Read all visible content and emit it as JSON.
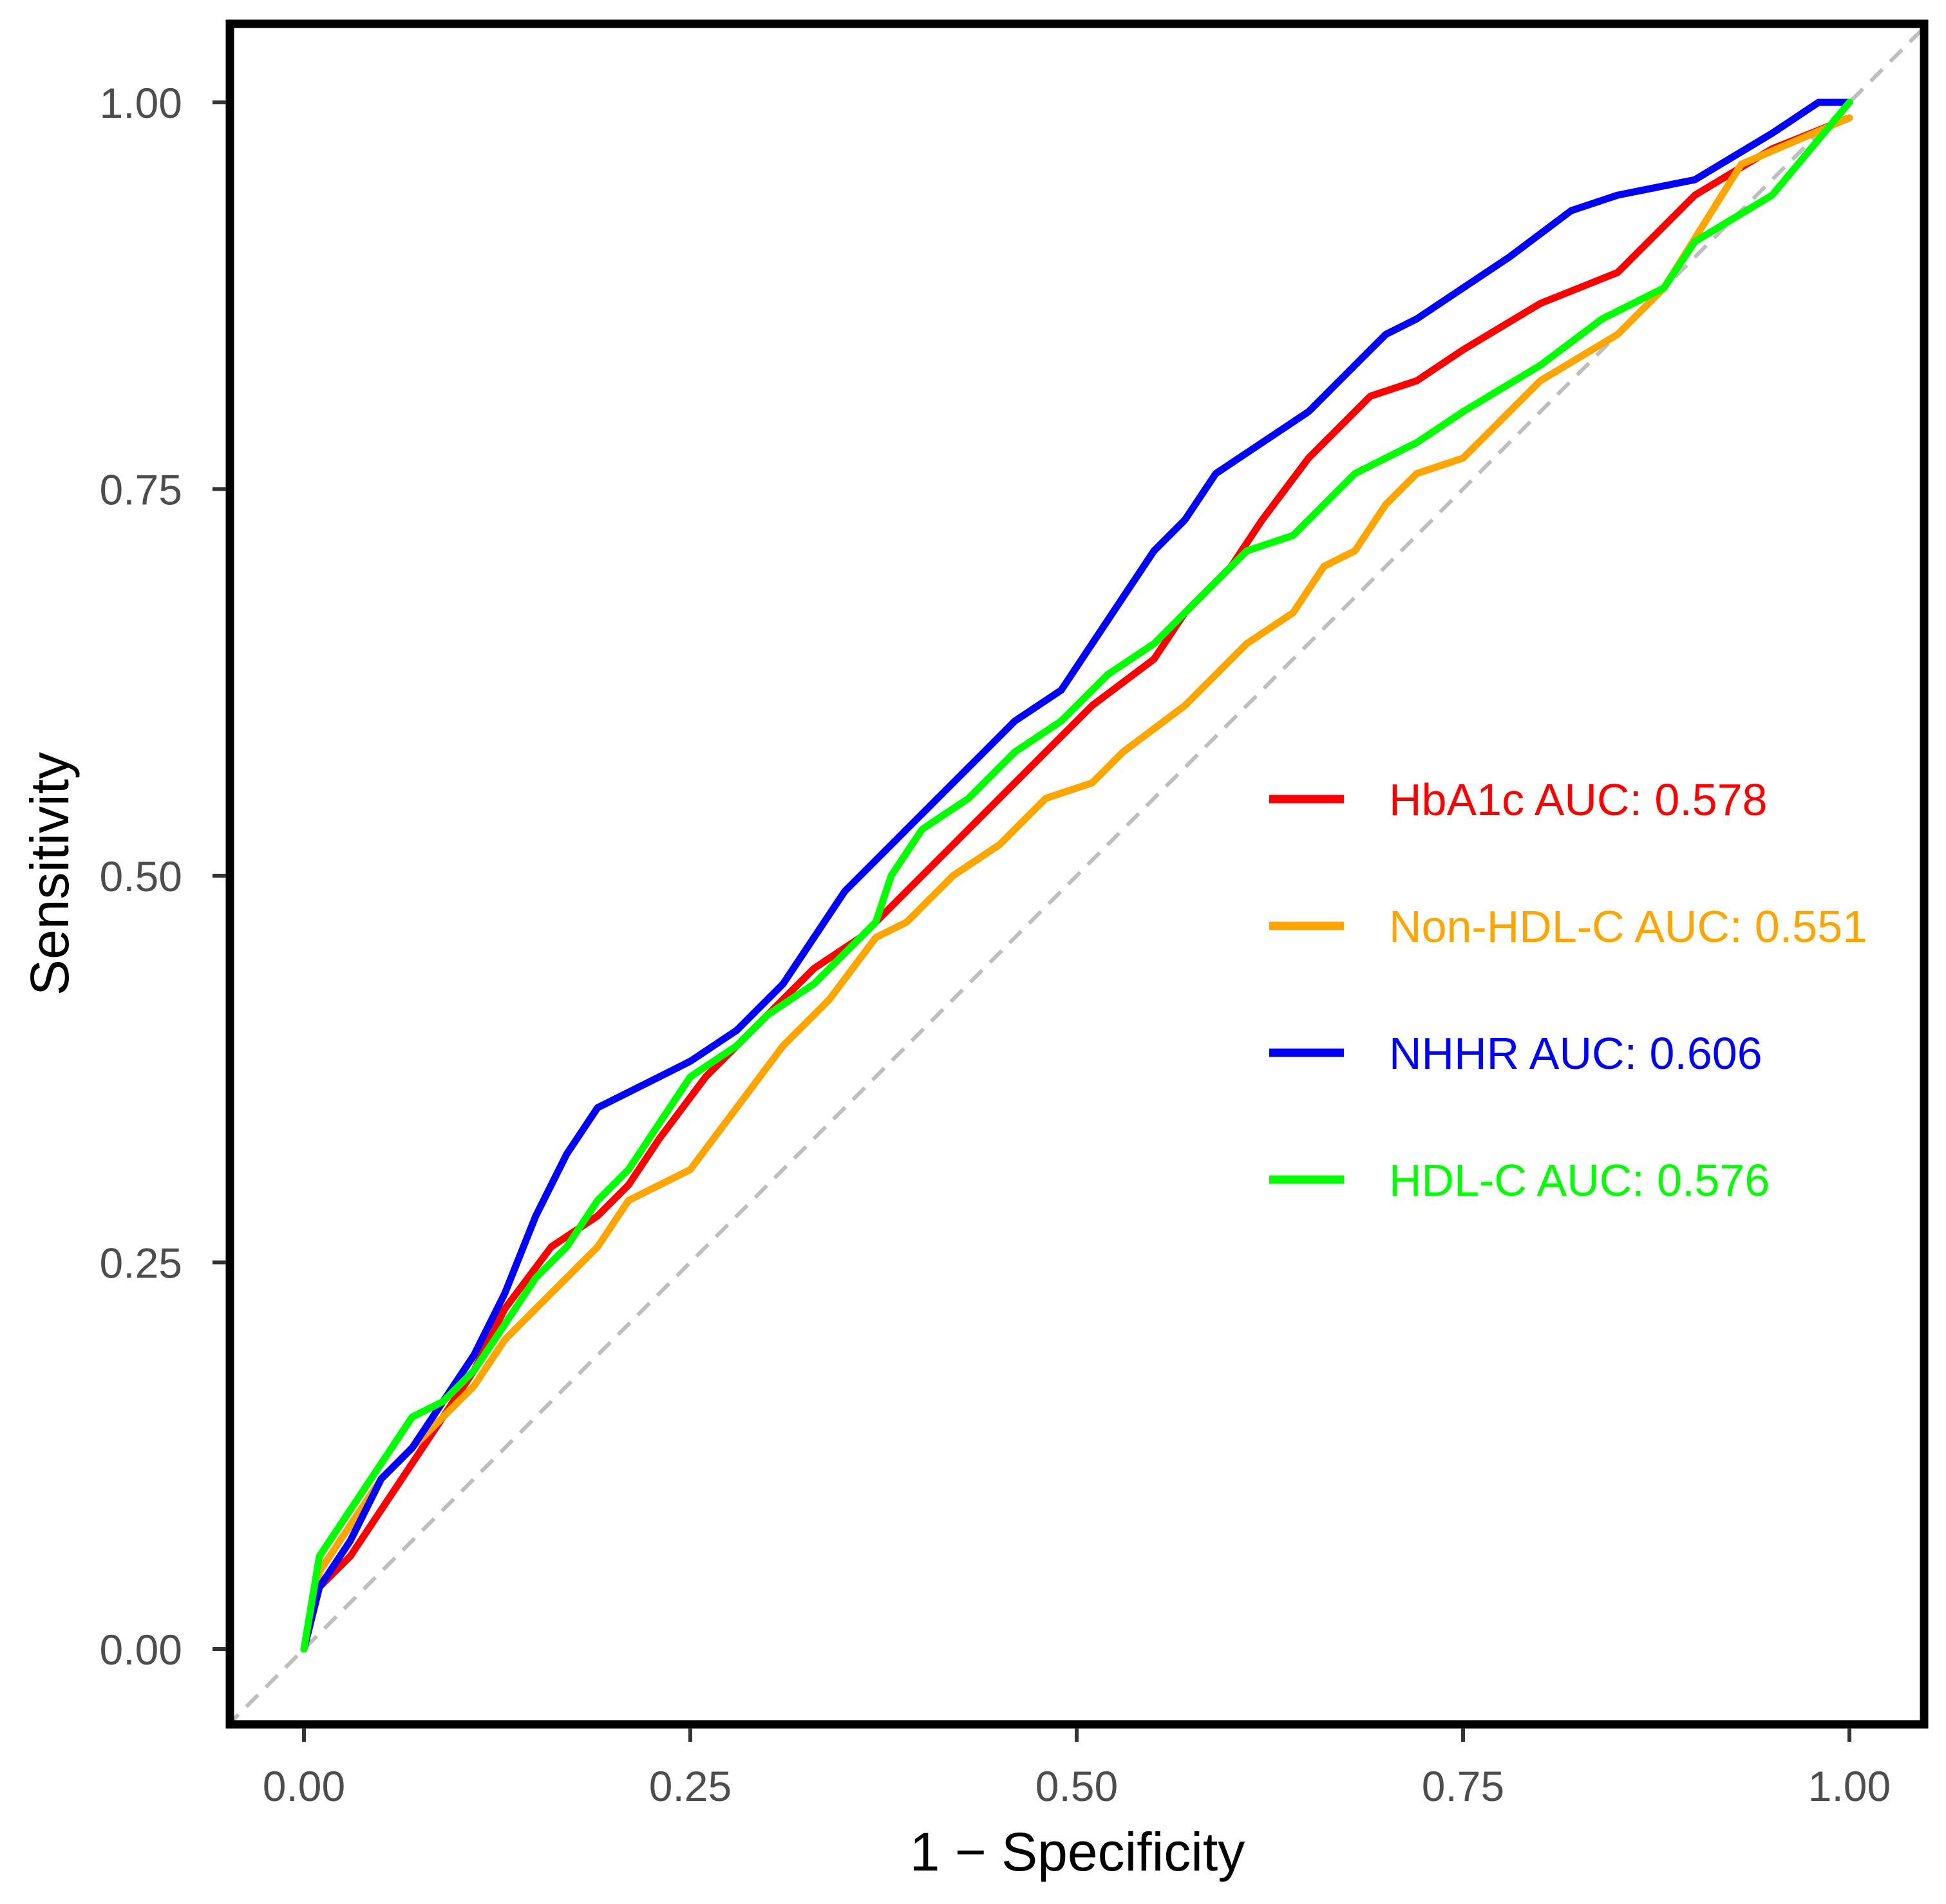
{
  "chart_data": {
    "type": "line",
    "title": "",
    "xlabel": "1 − Specificity",
    "ylabel": "Sensitivity",
    "xlim": [
      -0.05,
      1.05
    ],
    "ylim": [
      -0.05,
      1.05
    ],
    "x_ticks": [
      0,
      0.25,
      0.5,
      0.75,
      1
    ],
    "x_tick_labels": [
      "0.00",
      "0.25",
      "0.50",
      "0.75",
      "1.00"
    ],
    "y_ticks": [
      0,
      0.25,
      0.5,
      0.75,
      1
    ],
    "y_tick_labels": [
      "0.00",
      "0.25",
      "0.50",
      "0.75",
      "1.00"
    ],
    "grid": false,
    "legend_position": "right",
    "reference_line": {
      "style": "dashed",
      "color": "#bebebe",
      "x": [
        -0.05,
        1.05
      ],
      "y": [
        -0.05,
        1.05
      ]
    },
    "series": [
      {
        "name": "HbA1c",
        "legend_label": "HbA1c AUC: 0.578",
        "auc": 0.578,
        "color": "#ff0000",
        "x": [
          0,
          0.01,
          0.03,
          0.05,
          0.07,
          0.09,
          0.11,
          0.13,
          0.16,
          0.19,
          0.21,
          0.23,
          0.26,
          0.29,
          0.31,
          0.33,
          0.36,
          0.39,
          0.42,
          0.45,
          0.48,
          0.51,
          0.55,
          0.57,
          0.6,
          0.62,
          0.65,
          0.69,
          0.72,
          0.75,
          0.8,
          0.85,
          0.87,
          0.9,
          0.95,
          1
        ],
        "y": [
          0,
          0.04,
          0.06,
          0.09,
          0.12,
          0.15,
          0.18,
          0.22,
          0.26,
          0.28,
          0.3,
          0.33,
          0.37,
          0.4,
          0.42,
          0.44,
          0.46,
          0.49,
          0.52,
          0.55,
          0.58,
          0.61,
          0.64,
          0.67,
          0.7,
          0.73,
          0.77,
          0.81,
          0.82,
          0.84,
          0.87,
          0.89,
          0.91,
          0.94,
          0.97,
          0.99
        ]
      },
      {
        "name": "Non-HDL-C",
        "legend_label": "Non-HDL-C AUC: 0.551",
        "auc": 0.551,
        "color": "#ffa500",
        "x": [
          0,
          0.01,
          0.03,
          0.05,
          0.07,
          0.09,
          0.11,
          0.13,
          0.16,
          0.19,
          0.21,
          0.23,
          0.25,
          0.28,
          0.31,
          0.34,
          0.37,
          0.39,
          0.42,
          0.45,
          0.48,
          0.51,
          0.53,
          0.57,
          0.59,
          0.61,
          0.64,
          0.66,
          0.68,
          0.7,
          0.72,
          0.75,
          0.78,
          0.8,
          0.85,
          0.88,
          0.93,
          1
        ],
        "y": [
          0,
          0.05,
          0.08,
          0.11,
          0.13,
          0.15,
          0.17,
          0.2,
          0.23,
          0.26,
          0.29,
          0.3,
          0.31,
          0.35,
          0.39,
          0.42,
          0.46,
          0.47,
          0.5,
          0.52,
          0.55,
          0.56,
          0.58,
          0.61,
          0.63,
          0.65,
          0.67,
          0.7,
          0.71,
          0.74,
          0.76,
          0.77,
          0.8,
          0.82,
          0.85,
          0.88,
          0.96,
          0.99
        ]
      },
      {
        "name": "NHHR",
        "legend_label": "NHHR AUC: 0.606",
        "auc": 0.606,
        "color": "#0000ff",
        "x": [
          0,
          0.01,
          0.03,
          0.05,
          0.07,
          0.09,
          0.11,
          0.13,
          0.15,
          0.17,
          0.19,
          0.21,
          0.23,
          0.25,
          0.28,
          0.31,
          0.33,
          0.35,
          0.37,
          0.39,
          0.41,
          0.43,
          0.46,
          0.49,
          0.51,
          0.53,
          0.55,
          0.57,
          0.59,
          0.62,
          0.65,
          0.68,
          0.7,
          0.72,
          0.75,
          0.78,
          0.82,
          0.85,
          0.9,
          0.95,
          0.98,
          1
        ],
        "y": [
          0,
          0.04,
          0.07,
          0.11,
          0.13,
          0.16,
          0.19,
          0.23,
          0.28,
          0.32,
          0.35,
          0.36,
          0.37,
          0.38,
          0.4,
          0.43,
          0.46,
          0.49,
          0.51,
          0.53,
          0.55,
          0.57,
          0.6,
          0.62,
          0.65,
          0.68,
          0.71,
          0.73,
          0.76,
          0.78,
          0.8,
          0.83,
          0.85,
          0.86,
          0.88,
          0.9,
          0.93,
          0.94,
          0.95,
          0.98,
          1,
          1
        ]
      },
      {
        "name": "HDL-C",
        "legend_label": "HDL-C AUC: 0.576",
        "auc": 0.576,
        "color": "#00ff00",
        "x": [
          0,
          0.01,
          0.03,
          0.05,
          0.07,
          0.09,
          0.11,
          0.13,
          0.15,
          0.17,
          0.19,
          0.21,
          0.23,
          0.25,
          0.28,
          0.3,
          0.33,
          0.35,
          0.37,
          0.38,
          0.4,
          0.43,
          0.46,
          0.49,
          0.52,
          0.55,
          0.58,
          0.61,
          0.64,
          0.66,
          0.68,
          0.72,
          0.75,
          0.8,
          0.84,
          0.88,
          0.9,
          0.95,
          1
        ],
        "y": [
          0,
          0.06,
          0.09,
          0.12,
          0.15,
          0.16,
          0.18,
          0.21,
          0.24,
          0.26,
          0.29,
          0.31,
          0.34,
          0.37,
          0.39,
          0.41,
          0.43,
          0.45,
          0.47,
          0.5,
          0.53,
          0.55,
          0.58,
          0.6,
          0.63,
          0.65,
          0.68,
          0.71,
          0.72,
          0.74,
          0.76,
          0.78,
          0.8,
          0.83,
          0.86,
          0.88,
          0.91,
          0.94,
          1
        ]
      }
    ]
  }
}
